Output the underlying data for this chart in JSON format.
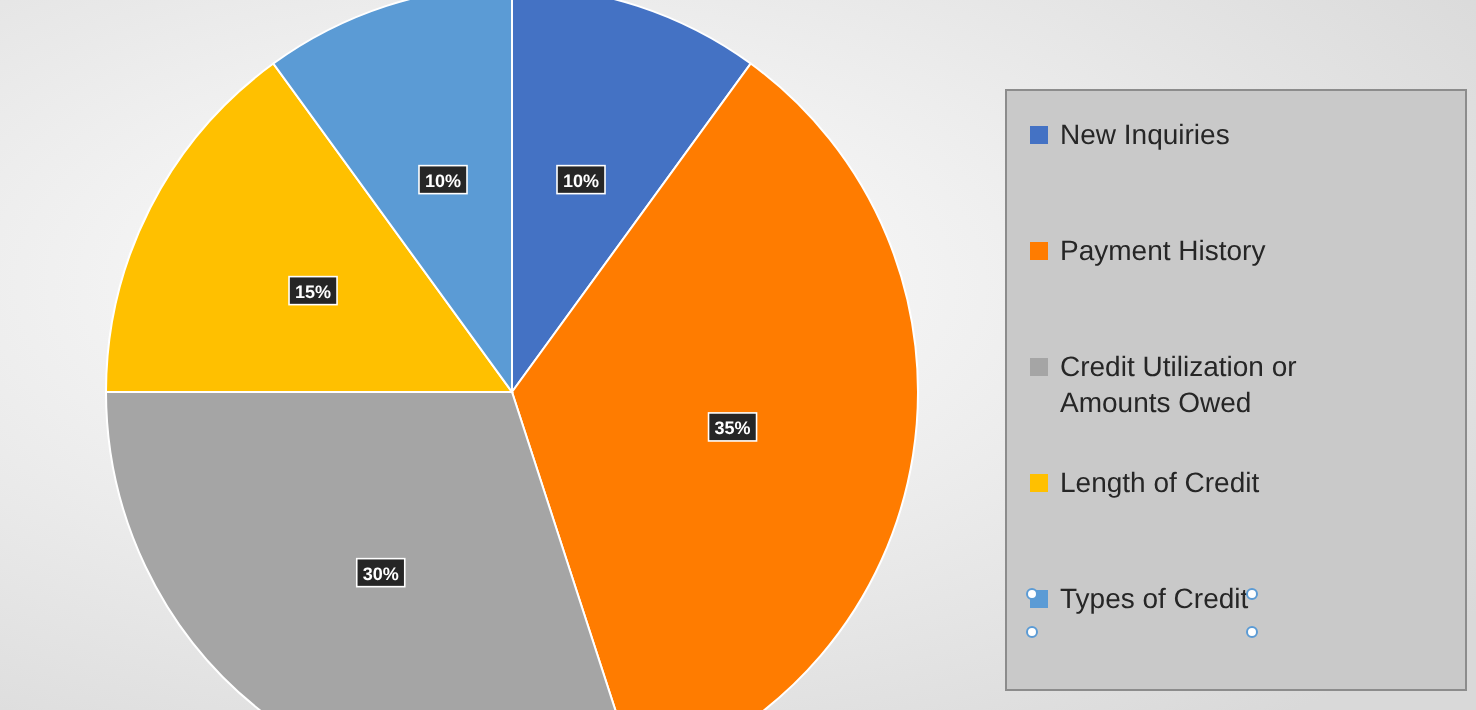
{
  "chart_data": {
    "type": "pie",
    "categories": [
      "New Inquiries",
      "Payment History",
      "Credit Utilization or Amounts Owed",
      "Length of Credit",
      "Types of Credit"
    ],
    "values": [
      10,
      35,
      30,
      15,
      10
    ],
    "colors": [
      "#4472c4",
      "#ff7c00",
      "#a5a5a5",
      "#ffc000",
      "#5b9bd5"
    ],
    "value_labels": [
      "10%",
      "35%",
      "30%",
      "15%",
      "10%"
    ],
    "legend": "right"
  }
}
